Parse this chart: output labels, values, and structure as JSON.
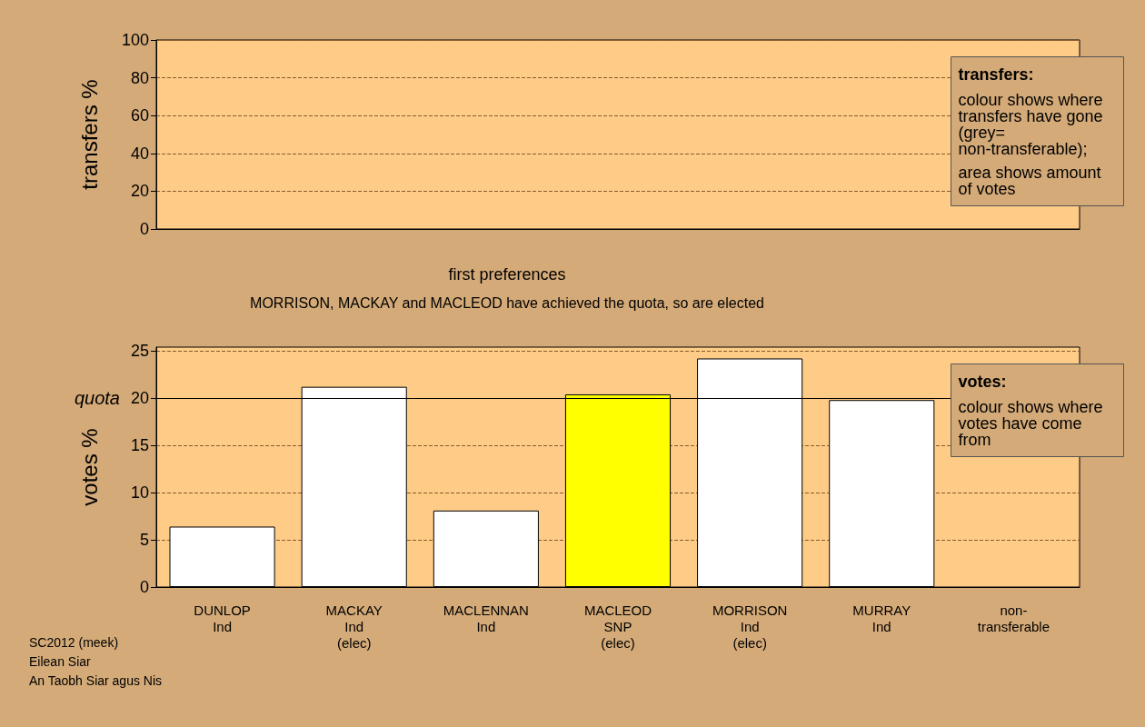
{
  "chart_data": [
    {
      "type": "bar",
      "ylabel": "transfers %",
      "categories": [
        null,
        null,
        null,
        null,
        null,
        null,
        null
      ],
      "values": [
        null,
        null,
        null,
        null,
        null,
        null,
        null
      ],
      "ylim": [
        0,
        100
      ],
      "yticks": [
        0,
        20,
        40,
        60,
        80,
        100
      ],
      "grid": "y",
      "tick_labels": "y",
      "annotations": [
        "transfers:",
        "colour shows where transfers have gone (grey= non-transferable);",
        "area shows amount of votes"
      ]
    },
    {
      "type": "bar",
      "title": "first preferences",
      "subtitle": "MORRISON, MACKAY and MACLEOD have achieved the quota, so are elected",
      "ylabel": "votes %",
      "categories": [
        "DUNLOP\nInd",
        "MACKAY\nInd\n(elec)",
        "MACLENNAN\nInd",
        "MACLEOD\nSNP\n(elec)",
        "MORRISON\nInd\n(elec)",
        "MURRAY\nInd",
        "non-\ntransferable"
      ],
      "values": [
        6.4,
        21.2,
        8.1,
        20.4,
        24.2,
        19.8,
        null
      ],
      "colors": [
        "#ffffff",
        "#ffffff",
        "#ffffff",
        "#ffff00",
        "#ffffff",
        "#ffffff",
        "#ffffff"
      ],
      "ylim": [
        0,
        25.4
      ],
      "yticks": [
        0,
        5,
        10,
        15,
        20,
        25
      ],
      "grid": "y",
      "ref_lines": [
        {
          "axis": "y",
          "value": 20,
          "label": "quota"
        }
      ],
      "annotations": [
        "votes:",
        "colour shows where votes have come from",
        "SC2012 (meek)",
        "Eilean Siar",
        "An Taobh Siar agus Nis"
      ]
    }
  ]
}
